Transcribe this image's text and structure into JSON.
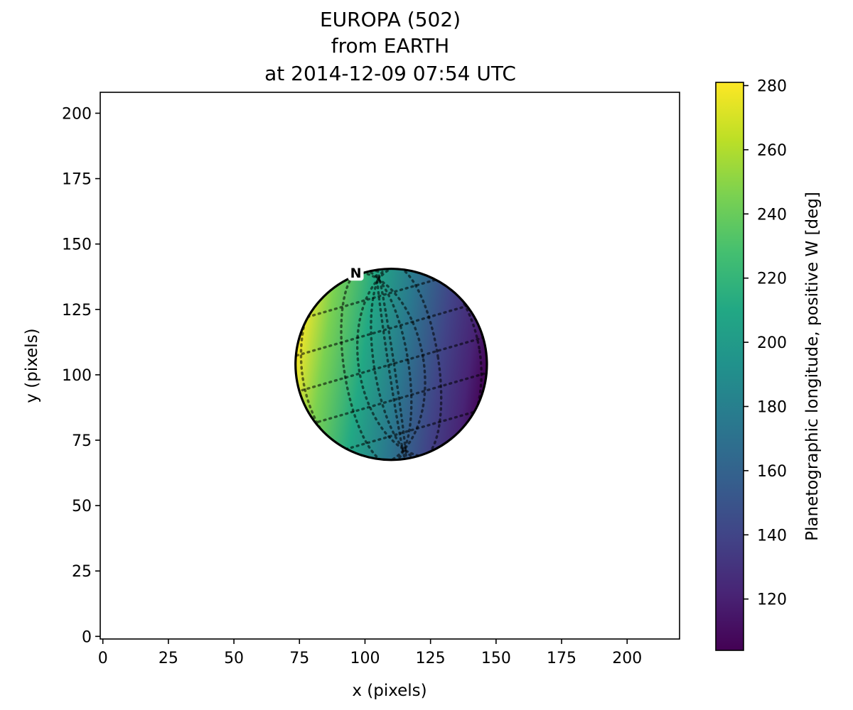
{
  "chart_data": {
    "type": "heatmap",
    "title": [
      "EUROPA (502)",
      "from EARTH",
      "at 2014-12-09 07:54 UTC"
    ],
    "xlabel": "x (pixels)",
    "ylabel": "y (pixels)",
    "xlim": [
      -1,
      220
    ],
    "ylim": [
      -1,
      208
    ],
    "xticks": [
      0,
      25,
      50,
      75,
      100,
      125,
      150,
      175,
      200
    ],
    "yticks": [
      0,
      25,
      50,
      75,
      100,
      125,
      150,
      175,
      200
    ],
    "grid": false,
    "disc": {
      "center": [
        110,
        104
      ],
      "radius": 36.5,
      "north_marker": {
        "label": "N",
        "position": [
          96.5,
          139
        ]
      }
    },
    "colorbar": {
      "label": "Planetographic longitude, positive W [deg]",
      "colormap": "viridis",
      "range": [
        104,
        281
      ],
      "ticks": [
        120,
        140,
        160,
        180,
        200,
        220,
        240,
        260,
        280
      ]
    },
    "longitude_extent": {
      "limb_left": 275,
      "limb_right": 105,
      "center": 190
    }
  }
}
